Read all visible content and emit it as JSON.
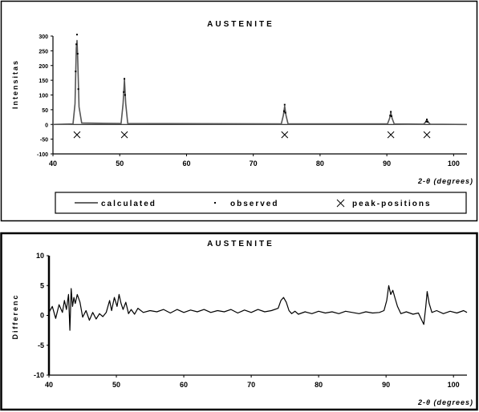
{
  "chart_data": [
    {
      "type": "line",
      "title": "AUSTENITE",
      "xlabel": "2-θ (degrees)",
      "ylabel": "Intensitas",
      "xlim": [
        40,
        102
      ],
      "ylim": [
        -100,
        300
      ],
      "x_ticks": [
        40,
        50,
        60,
        70,
        80,
        90,
        100
      ],
      "y_ticks": [
        -100,
        -50,
        0,
        50,
        100,
        150,
        200,
        250,
        300
      ],
      "grid": false,
      "legend_position": "bottom",
      "series": [
        {
          "name": "calculated",
          "style": "line",
          "x": [
            40,
            43.0,
            43.3,
            43.5,
            43.6,
            43.7,
            43.9,
            44.3,
            50.2,
            50.5,
            50.7,
            50.9,
            51.2,
            74.2,
            74.5,
            74.7,
            74.9,
            75.2,
            90.1,
            90.4,
            90.6,
            90.8,
            91.1,
            95.5,
            95.8,
            96.0,
            96.2,
            96.5,
            102
          ],
          "y": [
            0,
            2,
            70,
            260,
            285,
            230,
            60,
            5,
            3,
            70,
            152,
            70,
            3,
            2,
            30,
            62,
            30,
            2,
            2,
            20,
            40,
            20,
            2,
            1,
            8,
            15,
            8,
            1,
            0
          ]
        },
        {
          "name": "observed",
          "style": "points",
          "x": [
            43.4,
            43.5,
            43.6,
            43.7,
            43.8,
            50.6,
            50.7,
            50.8,
            74.6,
            74.7,
            74.8,
            90.5,
            90.6,
            90.7,
            95.9,
            96.0,
            96.1
          ],
          "y": [
            180,
            272,
            305,
            240,
            120,
            110,
            155,
            100,
            45,
            67,
            40,
            30,
            43,
            28,
            10,
            17,
            9
          ]
        }
      ],
      "peak_positions": [
        43.6,
        50.7,
        74.7,
        90.6,
        96.0
      ],
      "legend": [
        "calculated",
        "observed",
        "peak-positions"
      ]
    },
    {
      "type": "line",
      "title": "AUSTENITE",
      "xlabel": "2-θ (degrees)",
      "ylabel": "Differenc",
      "xlim": [
        40,
        102
      ],
      "ylim": [
        -10,
        10
      ],
      "x_ticks": [
        40,
        50,
        60,
        70,
        80,
        90,
        100
      ],
      "y_ticks": [
        -10,
        -5,
        0,
        5,
        10
      ],
      "grid": false,
      "series": [
        {
          "name": "difference",
          "x": [
            40,
            40.5,
            41,
            41.5,
            42,
            42.3,
            42.6,
            42.9,
            43.1,
            43.3,
            43.5,
            43.7,
            43.9,
            44.2,
            44.6,
            45,
            45.5,
            46,
            46.5,
            47,
            47.5,
            48,
            48.5,
            49,
            49.3,
            49.7,
            50.1,
            50.4,
            50.7,
            51,
            51.4,
            51.8,
            52.2,
            52.7,
            53.2,
            54,
            55,
            56,
            57,
            58,
            59,
            60,
            61,
            62,
            63,
            64,
            65,
            66,
            67,
            68,
            69,
            70,
            71,
            72,
            73,
            74,
            74.4,
            74.8,
            75.2,
            75.6,
            76,
            76.5,
            77,
            78,
            79,
            80,
            81,
            82,
            83,
            84,
            85,
            86,
            87,
            88,
            89,
            89.7,
            90.1,
            90.4,
            90.7,
            91,
            91.3,
            91.7,
            92.2,
            93,
            94,
            94.8,
            95.3,
            95.6,
            95.9,
            96.1,
            96.4,
            96.8,
            97.5,
            98.5,
            99.5,
            100.5,
            101.5,
            102
          ],
          "y": [
            0.5,
            1.5,
            -0.5,
            1.8,
            0.5,
            2.5,
            1.0,
            3.5,
            -2.5,
            4.5,
            1.5,
            3.0,
            2.0,
            3.5,
            2.2,
            -0.3,
            0.8,
            -0.8,
            0.5,
            -0.6,
            0.3,
            -0.2,
            0.5,
            2.5,
            0.8,
            3.0,
            1.5,
            3.5,
            2.0,
            1.0,
            2.2,
            0.3,
            1.0,
            0.2,
            1.2,
            0.5,
            0.8,
            0.6,
            1.0,
            0.4,
            1.0,
            0.5,
            0.9,
            0.6,
            1.0,
            0.5,
            0.8,
            0.6,
            1.0,
            0.4,
            0.9,
            0.5,
            1.0,
            0.6,
            0.8,
            1.2,
            2.5,
            3.0,
            2.2,
            0.8,
            0.3,
            0.7,
            0.2,
            0.6,
            0.3,
            0.7,
            0.4,
            0.6,
            0.3,
            0.7,
            0.5,
            0.3,
            0.6,
            0.4,
            0.5,
            0.8,
            2.5,
            5.0,
            3.5,
            4.2,
            3.0,
            1.5,
            0.3,
            0.6,
            0.2,
            0.4,
            -0.8,
            -1.5,
            1.5,
            4.0,
            2.0,
            0.5,
            0.8,
            0.3,
            0.7,
            0.4,
            0.8,
            0.5
          ]
        }
      ]
    }
  ]
}
